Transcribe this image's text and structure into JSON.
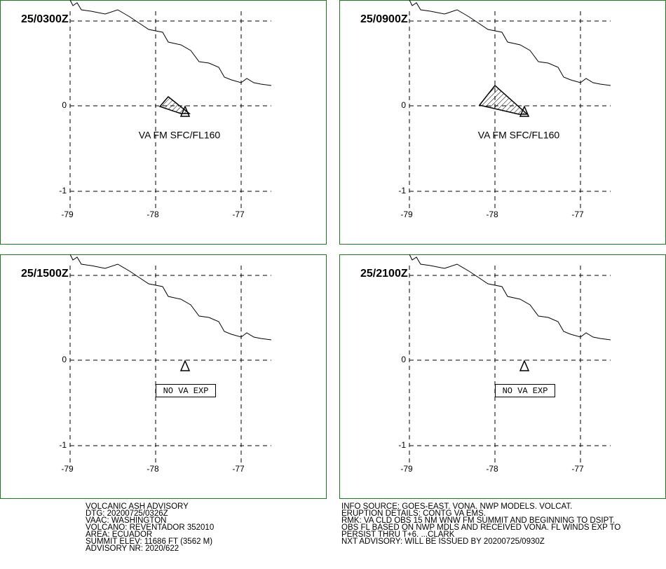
{
  "panels": [
    {
      "time": "25/0300Z",
      "label": "VA FM SFC/FL160"
    },
    {
      "time": "25/0900Z",
      "label": "VA FM SFC/FL160"
    },
    {
      "time": "25/1500Z",
      "note": "NO VA EXP"
    },
    {
      "time": "25/2100Z",
      "note": "NO VA EXP"
    }
  ],
  "lon_labels": [
    "-79",
    "-78",
    "-77"
  ],
  "lat_labels": [
    "0",
    "-1"
  ],
  "text_left": [
    "VOLCANIC ASH ADVISORY",
    "DTG: 20200725/0326Z",
    "VAAC: WASHINGTON",
    "VOLCANO: REVENTADOR 352010",
    "AREA: ECUADOR",
    "SUMMIT ELEV: 11686 FT (3562 M)",
    "ADVISORY NR: 2020/622"
  ],
  "text_right": [
    "INFO SOURCE: GOES-EAST. VONA. NWP MODELS. VOLCAT.",
    "ERUPTION DETAILS: CONTG VA EMS.",
    "RMK: VA CLD OBS 15 NM WNW FM SUMMIT AND BEGINNING TO DSIPT.",
    "OBS FL BASED ON NWP MDLS AND RECEIVED VONA. FL WINDS EXP TO",
    "PERSIST THRU T+6. ...CLARK",
    "NXT ADVISORY: WILL BE ISSUED BY 20200725/0930Z"
  ]
}
